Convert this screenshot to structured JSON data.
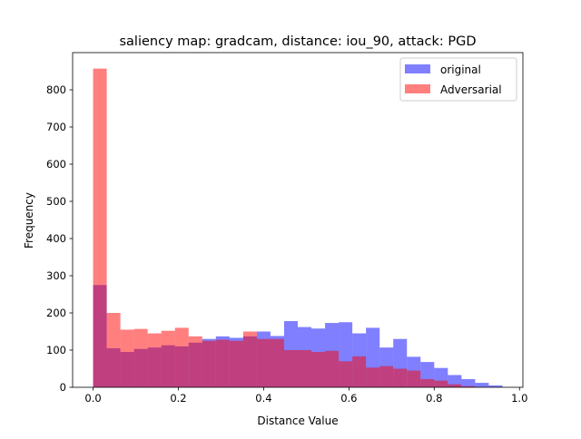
{
  "chart_data": {
    "type": "histogram",
    "title": "saliency map: gradcam, distance: iou_90, attack: PGD",
    "xlabel": "Distance Value",
    "ylabel": "Frequency",
    "xlim": [
      -0.048,
      1.008
    ],
    "ylim": [
      0,
      900
    ],
    "xticks": [
      "0.0",
      "0.2",
      "0.4",
      "0.6",
      "0.8",
      "1.0"
    ],
    "yticks": [
      "0",
      "100",
      "200",
      "300",
      "400",
      "500",
      "600",
      "700",
      "800"
    ],
    "legend_position": "top-right",
    "bin_edges": [
      0.0,
      0.032,
      0.064,
      0.096,
      0.128,
      0.16,
      0.192,
      0.224,
      0.256,
      0.288,
      0.32,
      0.352,
      0.384,
      0.416,
      0.448,
      0.48,
      0.512,
      0.544,
      0.576,
      0.608,
      0.64,
      0.672,
      0.704,
      0.736,
      0.768,
      0.8,
      0.832,
      0.864,
      0.896,
      0.928,
      0.96
    ],
    "series": [
      {
        "name": "original",
        "color": "#0000ff",
        "alpha": 0.5,
        "values": [
          275,
          105,
          95,
          103,
          107,
          113,
          110,
          120,
          130,
          137,
          133,
          137,
          150,
          138,
          178,
          162,
          158,
          173,
          175,
          145,
          160,
          107,
          130,
          82,
          68,
          52,
          33,
          22,
          12,
          5
        ]
      },
      {
        "name": "Adversarial",
        "color": "#ff0000",
        "alpha": 0.5,
        "values": [
          857,
          200,
          155,
          157,
          145,
          152,
          160,
          137,
          125,
          128,
          125,
          150,
          130,
          130,
          100,
          100,
          95,
          98,
          70,
          83,
          53,
          57,
          50,
          45,
          22,
          18,
          8,
          3,
          0,
          0
        ]
      }
    ]
  }
}
